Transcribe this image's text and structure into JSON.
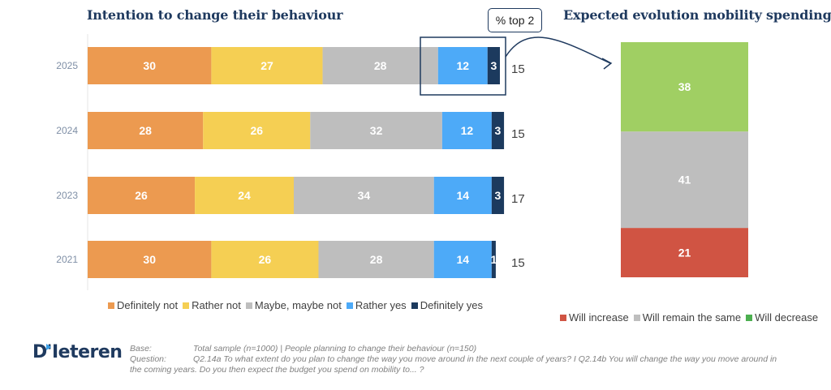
{
  "chart_data": [
    {
      "type": "bar",
      "orientation": "horizontal",
      "stacked": true,
      "title": "Intention to change their behaviour",
      "categories": [
        "2025",
        "2024",
        "2023",
        "2021"
      ],
      "series": [
        {
          "name": "Definitely not",
          "color": "#EC9A50",
          "values": [
            30,
            28,
            26,
            30
          ]
        },
        {
          "name": "Rather not",
          "color": "#F5CF53",
          "values": [
            27,
            26,
            24,
            26
          ]
        },
        {
          "name": "Maybe, maybe not",
          "color": "#BEBEBE",
          "values": [
            28,
            32,
            34,
            28
          ]
        },
        {
          "name": "Rather yes",
          "color": "#4DAAF8",
          "values": [
            12,
            12,
            14,
            14
          ]
        },
        {
          "name": "Definitely yes",
          "color": "#1C3A5E",
          "values": [
            3,
            3,
            3,
            1
          ]
        }
      ],
      "totals_top2": [
        15,
        15,
        17,
        15
      ],
      "xlim": [
        0,
        100
      ],
      "legend": "bottom",
      "grid": false,
      "callout": "% top 2"
    },
    {
      "type": "bar",
      "orientation": "vertical",
      "stacked": true,
      "title": "Expected evolution mobility spendings",
      "categories": [
        ""
      ],
      "series": [
        {
          "name": "Will increase",
          "color": "#D05443",
          "legend_color": "#D05443",
          "values": [
            21
          ]
        },
        {
          "name": "Will remain the same",
          "color": "#BEBEBE",
          "legend_color": "#BEBEBE",
          "values": [
            41
          ]
        },
        {
          "name": "Will decrease",
          "color": "#A0CF63",
          "legend_color": "#4CAF50",
          "values": [
            38
          ]
        }
      ],
      "ylim": [
        0,
        100
      ],
      "legend": "bottom",
      "grid": false
    }
  ],
  "footer": {
    "logo": "D'Ieteren",
    "base_label": "Base:",
    "base_text": "Total sample (n=1000) | People planning to change their behaviour (n=150)",
    "question_label": "Question:",
    "question_text": "Q2.14a To what extent do you plan to change the way you move around in the next couple of years? I Q2.14b You will change the way you move around in",
    "question_text_cont": "the coming years. Do you then expect the budget you spend on mobility to... ?"
  },
  "icons": {
    "arrow": "curved-arrow-icon"
  }
}
